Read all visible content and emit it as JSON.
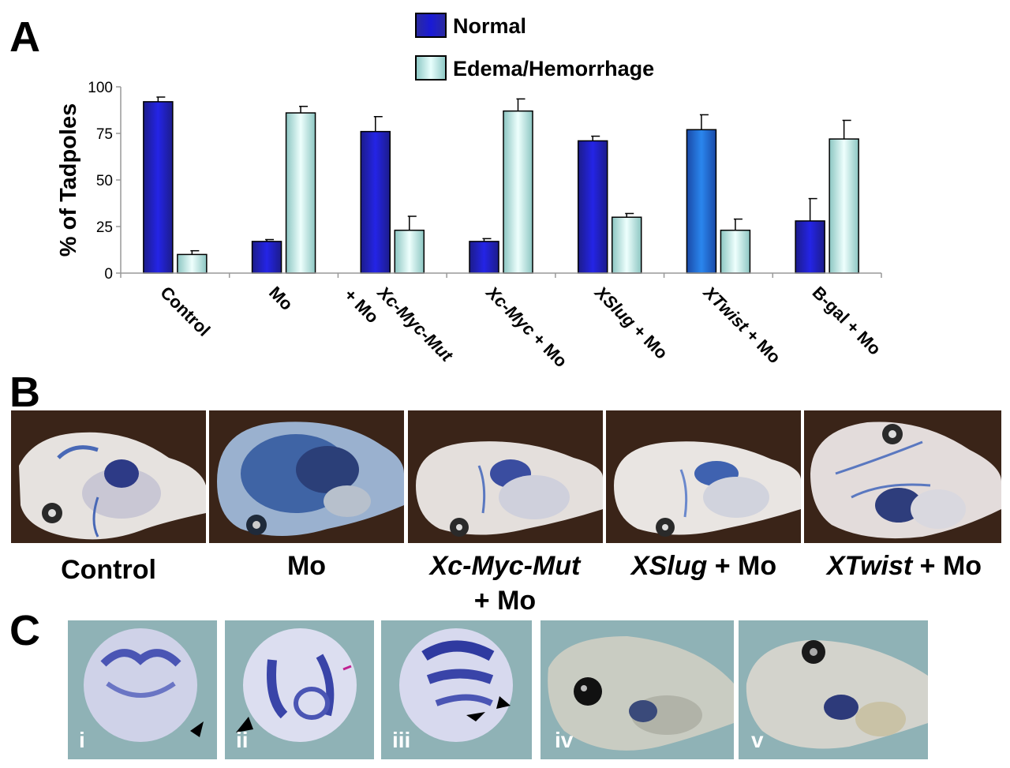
{
  "panels": {
    "a": "A",
    "b": "B",
    "c": "C"
  },
  "chart_data": {
    "type": "bar",
    "ylabel": "% of Tadpoles",
    "ylim": [
      0,
      100
    ],
    "yticks": [
      "0",
      "25",
      "50",
      "75",
      "100"
    ],
    "categories": [
      "Control",
      "Mo",
      "Xc-Myc-Mut + Mo",
      "Xc-Myc + Mo",
      "XSlug + Mo",
      "XTwist + Mo",
      "B-gal + Mo"
    ],
    "category_labels": [
      {
        "lines": [
          [
            {
              "t": "Control",
              "i": false
            }
          ]
        ]
      },
      {
        "lines": [
          [
            {
              "t": "Mo",
              "i": false
            }
          ]
        ]
      },
      {
        "lines": [
          [
            {
              "t": "Xc-Myc-Mut",
              "i": true
            }
          ],
          [
            {
              "t": "+ Mo",
              "i": false
            }
          ]
        ]
      },
      {
        "lines": [
          [
            {
              "t": "Xc-Myc",
              "i": true
            },
            {
              "t": " + Mo",
              "i": false
            }
          ]
        ]
      },
      {
        "lines": [
          [
            {
              "t": "XSlug",
              "i": true
            },
            {
              "t": " + Mo",
              "i": false
            }
          ]
        ]
      },
      {
        "lines": [
          [
            {
              "t": "XTwist",
              "i": true
            },
            {
              "t": " + Mo",
              "i": false
            }
          ]
        ]
      },
      {
        "lines": [
          [
            {
              "t": "B-gal + Mo",
              "i": false
            }
          ]
        ]
      }
    ],
    "series": [
      {
        "name": "Normal",
        "values": [
          92,
          17,
          76,
          17,
          71,
          77,
          28
        ],
        "errors": [
          2.5,
          1,
          8,
          1.5,
          2.5,
          8,
          12
        ]
      },
      {
        "name": "Edema/Hemorrhage",
        "values": [
          10,
          86,
          23,
          87,
          30,
          23,
          72
        ],
        "errors": [
          2,
          3.5,
          7.5,
          6.5,
          2,
          6,
          10
        ]
      }
    ],
    "grid": false,
    "legend_position": "top"
  },
  "colors": {
    "normal": "#1a1ad6",
    "normal_alt": "#1e6ad8",
    "edema": "#c9f1ee"
  },
  "panel_b": {
    "images": [
      "Control embryo",
      "Mo embryo",
      "Xc-Myc-Mut + Mo embryo",
      "XSlug + Mo embryo",
      "XTwist + Mo embryo"
    ],
    "captions": [
      {
        "parts": [
          {
            "t": "Control",
            "i": false
          }
        ]
      },
      {
        "parts": [
          {
            "t": "Mo",
            "i": false
          }
        ]
      },
      {
        "parts": [
          {
            "t": "Xc-Myc-Mut",
            "i": true
          }
        ],
        "line2": "+ Mo"
      },
      {
        "parts": [
          {
            "t": "XSlug",
            "i": true
          },
          {
            "t": " + Mo",
            "i": false
          }
        ]
      },
      {
        "parts": [
          {
            "t": "XTwist",
            "i": true
          },
          {
            "t": " + Mo",
            "i": false
          }
        ]
      }
    ]
  },
  "panel_c": {
    "labels": [
      "i",
      "ii",
      "iii",
      "iv",
      "v"
    ]
  }
}
